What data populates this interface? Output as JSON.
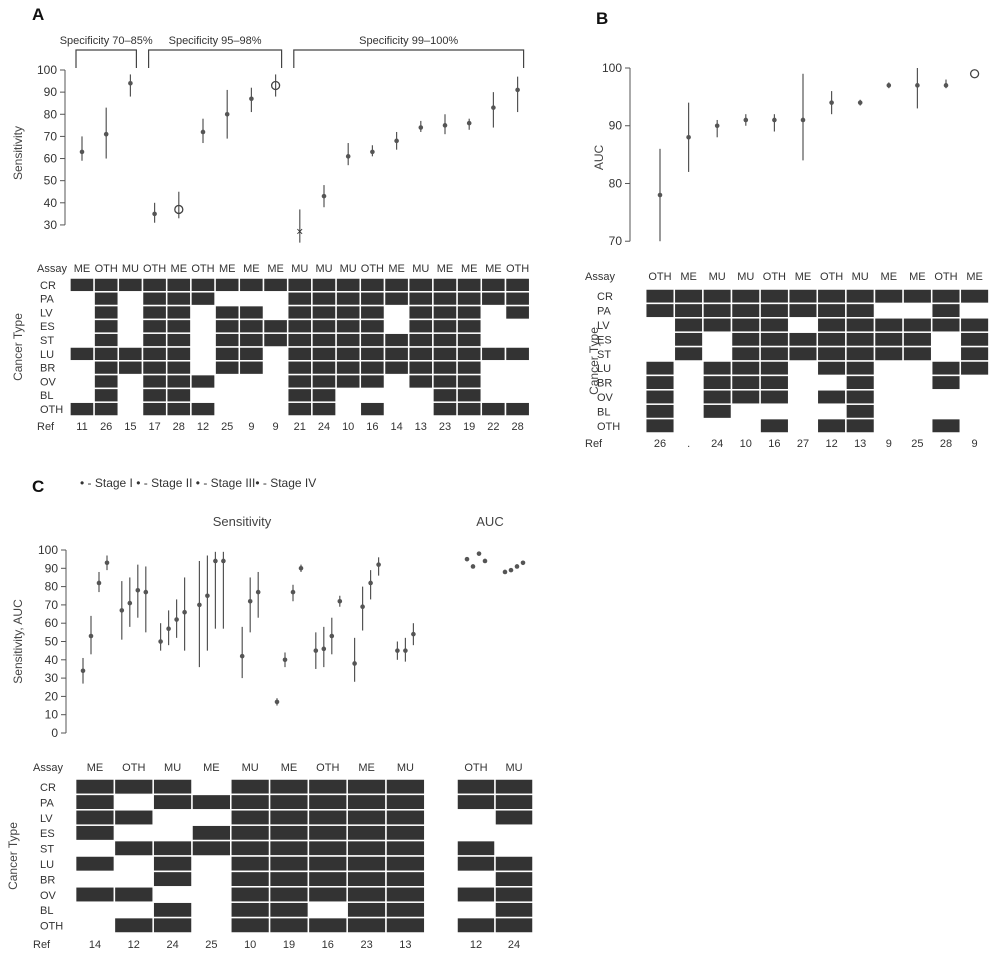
{
  "panels": {
    "a": "A",
    "b": "B",
    "c": "C"
  },
  "matrix_row_labels": [
    "CR",
    "PA",
    "LV",
    "ES",
    "ST",
    "LU",
    "BR",
    "OV",
    "BL",
    "OTH"
  ],
  "labels": {
    "assay": "Assay",
    "ref": "Ref",
    "cancer_type": "Cancer Type",
    "sensitivity": "Sensitivity",
    "auc": "AUC",
    "sens_auc": "Sensitivity, AUC"
  },
  "bracket_labels": [
    "Specificity 70–85%",
    "Specificity 95–98%",
    "Specificity 99–100%"
  ],
  "legend_c": "• - Stage I  • - Stage II • - Stage III• - Stage IV",
  "chart_data": [
    {
      "panel": "A",
      "type": "scatter",
      "ylabel": "Sensitivity",
      "ylim": [
        25,
        100
      ],
      "yticks": [
        30,
        40,
        50,
        60,
        70,
        80,
        90,
        100
      ],
      "brackets": [
        {
          "label": "Specificity 70–85%",
          "from": 0,
          "to": 2
        },
        {
          "label": "Specificity 95–98%",
          "from": 3,
          "to": 8
        },
        {
          "label": "Specificity 99–100%",
          "from": 9,
          "to": 18
        }
      ],
      "studies": [
        {
          "assay": "ME",
          "ref": "11",
          "y": 63,
          "lo": 59,
          "hi": 70,
          "marker": "dot"
        },
        {
          "assay": "OTH",
          "ref": "26",
          "y": 71,
          "lo": 60,
          "hi": 83,
          "marker": "dot"
        },
        {
          "assay": "MU",
          "ref": "15",
          "y": 94,
          "lo": 88,
          "hi": 98,
          "marker": "dot"
        },
        {
          "assay": "OTH",
          "ref": "17",
          "y": 35,
          "lo": 31,
          "hi": 40,
          "marker": "dot"
        },
        {
          "assay": "ME",
          "ref": "28",
          "y": 37,
          "lo": 33,
          "hi": 45,
          "marker": "open"
        },
        {
          "assay": "OTH",
          "ref": "12",
          "y": 72,
          "lo": 67,
          "hi": 78,
          "marker": "dot"
        },
        {
          "assay": "ME",
          "ref": "25",
          "y": 80,
          "lo": 69,
          "hi": 91,
          "marker": "dot"
        },
        {
          "assay": "ME",
          "ref": "9",
          "y": 87,
          "lo": 81,
          "hi": 92,
          "marker": "dot"
        },
        {
          "assay": "ME",
          "ref": "9",
          "y": 93,
          "lo": 88,
          "hi": 98,
          "marker": "open"
        },
        {
          "assay": "MU",
          "ref": "21",
          "y": 27,
          "lo": 22,
          "hi": 37,
          "marker": "x"
        },
        {
          "assay": "MU",
          "ref": "24",
          "y": 43,
          "lo": 38,
          "hi": 48,
          "marker": "dot"
        },
        {
          "assay": "MU",
          "ref": "10",
          "y": 61,
          "lo": 57,
          "hi": 67,
          "marker": "dot"
        },
        {
          "assay": "OTH",
          "ref": "16",
          "y": 63,
          "lo": 61,
          "hi": 66,
          "marker": "dot"
        },
        {
          "assay": "ME",
          "ref": "14",
          "y": 68,
          "lo": 64,
          "hi": 72,
          "marker": "dot"
        },
        {
          "assay": "MU",
          "ref": "13",
          "y": 74,
          "lo": 72,
          "hi": 77,
          "marker": "dot"
        },
        {
          "assay": "ME",
          "ref": "23",
          "y": 75,
          "lo": 71,
          "hi": 80,
          "marker": "dot"
        },
        {
          "assay": "ME",
          "ref": "19",
          "y": 76,
          "lo": 73,
          "hi": 78,
          "marker": "dot"
        },
        {
          "assay": "ME",
          "ref": "22",
          "y": 83,
          "lo": 74,
          "hi": 90,
          "marker": "dot"
        },
        {
          "assay": "OTH",
          "ref": "28",
          "y": 91,
          "lo": 81,
          "hi": 97,
          "marker": "dot"
        }
      ],
      "matrix": [
        [
          1,
          0,
          0,
          0,
          0,
          1,
          0,
          0,
          0,
          1
        ],
        [
          1,
          1,
          1,
          1,
          1,
          1,
          1,
          1,
          1,
          1
        ],
        [
          1,
          0,
          0,
          0,
          0,
          1,
          1,
          0,
          0,
          0
        ],
        [
          1,
          1,
          1,
          1,
          1,
          1,
          1,
          1,
          1,
          1
        ],
        [
          1,
          1,
          1,
          1,
          1,
          1,
          1,
          1,
          1,
          1
        ],
        [
          1,
          1,
          0,
          0,
          0,
          0,
          0,
          1,
          0,
          1
        ],
        [
          1,
          0,
          1,
          1,
          1,
          1,
          1,
          0,
          0,
          0
        ],
        [
          1,
          0,
          1,
          1,
          1,
          1,
          1,
          0,
          0,
          0
        ],
        [
          1,
          0,
          0,
          1,
          1,
          0,
          0,
          0,
          0,
          0
        ],
        [
          1,
          1,
          1,
          1,
          1,
          1,
          1,
          1,
          1,
          1
        ],
        [
          1,
          1,
          1,
          1,
          1,
          1,
          1,
          1,
          1,
          1
        ],
        [
          1,
          1,
          1,
          1,
          1,
          1,
          1,
          1,
          0,
          0
        ],
        [
          1,
          1,
          1,
          1,
          1,
          1,
          1,
          1,
          0,
          1
        ],
        [
          1,
          1,
          0,
          0,
          1,
          1,
          1,
          0,
          0,
          0
        ],
        [
          1,
          1,
          1,
          1,
          1,
          1,
          1,
          1,
          0,
          0
        ],
        [
          1,
          1,
          1,
          1,
          1,
          1,
          1,
          1,
          1,
          1
        ],
        [
          1,
          1,
          1,
          1,
          1,
          1,
          1,
          1,
          1,
          1
        ],
        [
          1,
          1,
          0,
          0,
          0,
          1,
          0,
          0,
          0,
          1
        ],
        [
          1,
          1,
          1,
          0,
          0,
          1,
          0,
          0,
          0,
          1
        ]
      ]
    },
    {
      "panel": "B",
      "type": "scatter",
      "ylabel": "AUC",
      "ylim": [
        69,
        100
      ],
      "yticks": [
        70,
        80,
        90,
        100
      ],
      "studies": [
        {
          "assay": "OTH",
          "ref": "26",
          "y": 78,
          "lo": 70,
          "hi": 86,
          "marker": "dot"
        },
        {
          "assay": "ME",
          "ref": ".",
          "y": 88,
          "lo": 82,
          "hi": 94,
          "marker": "dot"
        },
        {
          "assay": "MU",
          "ref": "24",
          "y": 90,
          "lo": 88,
          "hi": 91,
          "marker": "dot"
        },
        {
          "assay": "MU",
          "ref": "10",
          "y": 91,
          "lo": 90,
          "hi": 92,
          "marker": "dot"
        },
        {
          "assay": "OTH",
          "ref": "16",
          "y": 91,
          "lo": 89,
          "hi": 92,
          "marker": "dot"
        },
        {
          "assay": "ME",
          "ref": "27",
          "y": 91,
          "lo": 84,
          "hi": 99,
          "marker": "dot"
        },
        {
          "assay": "OTH",
          "ref": "12",
          "y": 94,
          "lo": 92,
          "hi": 96,
          "marker": "dot"
        },
        {
          "assay": "MU",
          "ref": "13",
          "y": 94,
          "lo": 93.5,
          "hi": 94.5,
          "marker": "dot"
        },
        {
          "assay": "ME",
          "ref": "9",
          "y": 97,
          "lo": 96.5,
          "hi": 97.5,
          "marker": "dot"
        },
        {
          "assay": "ME",
          "ref": "25",
          "y": 97,
          "lo": 93,
          "hi": 100,
          "marker": "dot"
        },
        {
          "assay": "OTH",
          "ref": "28",
          "y": 97,
          "lo": 96.5,
          "hi": 98,
          "marker": "dot"
        },
        {
          "assay": "ME",
          "ref": "9",
          "y": 99,
          "lo": 99,
          "hi": 99,
          "marker": "open"
        }
      ],
      "matrix": [
        [
          1,
          1,
          0,
          0,
          0,
          1,
          1,
          1,
          1,
          1
        ],
        [
          1,
          1,
          1,
          1,
          1,
          0,
          0,
          0,
          0,
          0
        ],
        [
          1,
          1,
          1,
          0,
          0,
          1,
          1,
          1,
          1,
          0
        ],
        [
          1,
          1,
          1,
          1,
          1,
          1,
          1,
          1,
          0,
          0
        ],
        [
          1,
          1,
          1,
          1,
          1,
          1,
          1,
          1,
          0,
          1
        ],
        [
          1,
          1,
          0,
          1,
          1,
          0,
          0,
          0,
          0,
          0
        ],
        [
          1,
          1,
          1,
          1,
          1,
          1,
          0,
          1,
          0,
          1
        ],
        [
          1,
          1,
          1,
          1,
          1,
          1,
          1,
          1,
          1,
          1
        ],
        [
          1,
          0,
          1,
          1,
          1,
          0,
          0,
          0,
          0,
          0
        ],
        [
          1,
          0,
          1,
          1,
          1,
          0,
          0,
          0,
          0,
          0
        ],
        [
          1,
          1,
          1,
          0,
          0,
          1,
          1,
          0,
          0,
          1
        ],
        [
          1,
          0,
          1,
          1,
          1,
          1,
          0,
          0,
          0,
          0
        ]
      ]
    },
    {
      "panel": "C",
      "type": "scatter",
      "title": "Sensitivity",
      "ylabel": "Sensitivity, AUC",
      "ylim": [
        0,
        100
      ],
      "yticks": [
        0,
        10,
        20,
        30,
        40,
        50,
        60,
        70,
        80,
        90,
        100
      ],
      "legend": [
        "Stage I",
        "Stage II",
        "Stage III",
        "Stage IV"
      ],
      "studies": [
        {
          "assay": "ME",
          "ref": "14",
          "points": [
            {
              "y": 34,
              "lo": 27,
              "hi": 41
            },
            {
              "y": 53,
              "lo": 43,
              "hi": 64
            },
            {
              "y": 82,
              "lo": 77,
              "hi": 88
            },
            {
              "y": 93,
              "lo": 89,
              "hi": 97
            }
          ]
        },
        {
          "assay": "OTH",
          "ref": "12",
          "points": [
            {
              "y": 67,
              "lo": 51,
              "hi": 83
            },
            {
              "y": 71,
              "lo": 58,
              "hi": 85
            },
            {
              "y": 78,
              "lo": 63,
              "hi": 92
            },
            {
              "y": 77,
              "lo": 55,
              "hi": 91
            }
          ]
        },
        {
          "assay": "MU",
          "ref": "24",
          "points": [
            {
              "y": 50,
              "lo": 45,
              "hi": 60
            },
            {
              "y": 57,
              "lo": 48,
              "hi": 67
            },
            {
              "y": 62,
              "lo": 52,
              "hi": 73
            },
            {
              "y": 66,
              "lo": 45,
              "hi": 85
            }
          ]
        },
        {
          "assay": "ME",
          "ref": "25",
          "points": [
            {
              "y": 70,
              "lo": 36,
              "hi": 94
            },
            {
              "y": 75,
              "lo": 45,
              "hi": 97
            },
            {
              "y": 94,
              "lo": 57,
              "hi": 99
            },
            {
              "y": 94,
              "lo": 57,
              "hi": 99
            }
          ]
        },
        {
          "assay": "MU",
          "ref": "10",
          "points": [
            {
              "y": 42,
              "lo": 30,
              "hi": 58
            },
            {
              "y": 72,
              "lo": 55,
              "hi": 85
            },
            {
              "y": 77,
              "lo": 63,
              "hi": 88
            }
          ]
        },
        {
          "assay": "ME",
          "ref": "19",
          "points": [
            {
              "y": 17,
              "lo": 15,
              "hi": 19
            },
            {
              "y": 40,
              "lo": 36,
              "hi": 44
            },
            {
              "y": 77,
              "lo": 72,
              "hi": 81
            },
            {
              "y": 90,
              "lo": 88,
              "hi": 92
            }
          ]
        },
        {
          "assay": "OTH",
          "ref": "16",
          "points": [
            {
              "y": 45,
              "lo": 35,
              "hi": 55
            },
            {
              "y": 46,
              "lo": 36,
              "hi": 58
            },
            {
              "y": 53,
              "lo": 43,
              "hi": 63
            },
            {
              "y": 72,
              "lo": 69,
              "hi": 75
            }
          ]
        },
        {
          "assay": "ME",
          "ref": "23",
          "points": [
            {
              "y": 38,
              "lo": 28,
              "hi": 52
            },
            {
              "y": 69,
              "lo": 56,
              "hi": 80
            },
            {
              "y": 82,
              "lo": 73,
              "hi": 89
            },
            {
              "y": 92,
              "lo": 86,
              "hi": 96
            }
          ]
        },
        {
          "assay": "MU",
          "ref": "13",
          "points": [
            {
              "y": 45,
              "lo": 40,
              "hi": 50
            },
            {
              "y": 45,
              "lo": 39,
              "hi": 52
            },
            {
              "y": 54,
              "lo": 48,
              "hi": 60
            }
          ]
        }
      ],
      "matrix": [
        [
          1,
          1,
          1,
          1,
          0,
          1,
          0,
          1,
          0,
          0
        ],
        [
          1,
          0,
          1,
          0,
          1,
          0,
          0,
          1,
          0,
          1
        ],
        [
          1,
          1,
          0,
          0,
          1,
          1,
          1,
          0,
          1,
          1
        ],
        [
          0,
          1,
          0,
          1,
          1,
          0,
          0,
          0,
          0,
          0
        ],
        [
          1,
          1,
          1,
          1,
          1,
          1,
          1,
          1,
          1,
          1
        ],
        [
          1,
          1,
          1,
          1,
          1,
          1,
          1,
          1,
          1,
          1
        ],
        [
          1,
          1,
          1,
          1,
          1,
          1,
          1,
          1,
          0,
          1
        ],
        [
          1,
          1,
          1,
          1,
          1,
          1,
          1,
          1,
          1,
          1
        ],
        [
          1,
          1,
          1,
          1,
          1,
          1,
          1,
          1,
          1,
          1
        ]
      ]
    },
    {
      "panel": "C",
      "type": "scatter",
      "title": "AUC",
      "ylim": [
        0,
        100
      ],
      "studies": [
        {
          "assay": "OTH",
          "ref": "12",
          "points": [
            {
              "y": 95
            },
            {
              "y": 91
            },
            {
              "y": 98
            },
            {
              "y": 94
            }
          ]
        },
        {
          "assay": "MU",
          "ref": "24",
          "points": [
            {
              "y": 88
            },
            {
              "y": 89
            },
            {
              "y": 91
            },
            {
              "y": 93
            }
          ]
        }
      ],
      "matrix": [
        [
          1,
          1,
          0,
          0,
          1,
          1,
          0,
          1,
          0,
          1
        ],
        [
          1,
          1,
          1,
          0,
          0,
          1,
          1,
          1,
          1,
          1
        ]
      ]
    }
  ]
}
